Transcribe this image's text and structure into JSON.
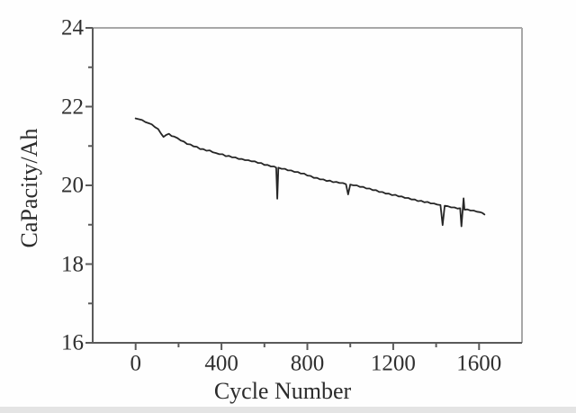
{
  "figure": {
    "kind": "scientific-line-plot",
    "background": "#fefefe"
  },
  "colors": {
    "curve": "#262626",
    "axis_dark": "#5a5a5a",
    "axis_light": "#a8a8a8",
    "text": "#2f2f2f",
    "bottom_strip": "#e4e4e4"
  },
  "chart_data": {
    "type": "line",
    "title": "",
    "xlabel": "Cycle Number",
    "ylabel": "CaPacity/Ah",
    "xlim": [
      -200,
      1800
    ],
    "ylim": [
      16,
      24
    ],
    "x_major_ticks": [
      0,
      400,
      800,
      1200,
      1600
    ],
    "x_minor_ticks": [
      200,
      600,
      1000,
      1400
    ],
    "y_major_ticks": [
      24,
      22,
      20,
      18,
      16
    ],
    "y_minor_ticks": [
      23,
      21,
      19,
      17
    ],
    "grid": false,
    "legend_position": "none",
    "series": [
      {
        "name": "capacity",
        "color": "#262626",
        "points": [
          [
            0,
            21.7
          ],
          [
            15,
            21.68
          ],
          [
            30,
            21.66
          ],
          [
            45,
            21.61
          ],
          [
            60,
            21.58
          ],
          [
            75,
            21.55
          ],
          [
            90,
            21.48
          ],
          [
            105,
            21.43
          ],
          [
            118,
            21.32
          ],
          [
            130,
            21.23
          ],
          [
            142,
            21.28
          ],
          [
            155,
            21.31
          ],
          [
            168,
            21.25
          ],
          [
            180,
            21.24
          ],
          [
            195,
            21.2
          ],
          [
            210,
            21.14
          ],
          [
            225,
            21.11
          ],
          [
            240,
            21.05
          ],
          [
            255,
            21.04
          ],
          [
            270,
            20.99
          ],
          [
            285,
            20.98
          ],
          [
            300,
            20.92
          ],
          [
            315,
            20.92
          ],
          [
            330,
            20.88
          ],
          [
            345,
            20.89
          ],
          [
            360,
            20.84
          ],
          [
            375,
            20.82
          ],
          [
            390,
            20.79
          ],
          [
            405,
            20.79
          ],
          [
            420,
            20.74
          ],
          [
            435,
            20.75
          ],
          [
            450,
            20.71
          ],
          [
            465,
            20.71
          ],
          [
            480,
            20.67
          ],
          [
            495,
            20.67
          ],
          [
            510,
            20.64
          ],
          [
            525,
            20.64
          ],
          [
            540,
            20.61
          ],
          [
            555,
            20.61
          ],
          [
            570,
            20.57
          ],
          [
            585,
            20.57
          ],
          [
            600,
            20.52
          ],
          [
            615,
            20.52
          ],
          [
            630,
            20.48
          ],
          [
            645,
            20.48
          ],
          [
            655,
            20.45
          ],
          [
            660,
            19.66
          ],
          [
            665,
            20.45
          ],
          [
            680,
            20.42
          ],
          [
            695,
            20.42
          ],
          [
            710,
            20.38
          ],
          [
            725,
            20.38
          ],
          [
            740,
            20.34
          ],
          [
            755,
            20.34
          ],
          [
            770,
            20.3
          ],
          [
            785,
            20.3
          ],
          [
            800,
            20.25
          ],
          [
            815,
            20.24
          ],
          [
            830,
            20.19
          ],
          [
            845,
            20.19
          ],
          [
            860,
            20.15
          ],
          [
            875,
            20.15
          ],
          [
            890,
            20.11
          ],
          [
            905,
            20.12
          ],
          [
            920,
            20.08
          ],
          [
            935,
            20.09
          ],
          [
            950,
            20.06
          ],
          [
            965,
            20.06
          ],
          [
            980,
            20.03
          ],
          [
            990,
            19.77
          ],
          [
            1000,
            20.02
          ],
          [
            1015,
            20.0
          ],
          [
            1030,
            20.0
          ],
          [
            1045,
            19.96
          ],
          [
            1060,
            19.96
          ],
          [
            1075,
            19.92
          ],
          [
            1090,
            19.92
          ],
          [
            1105,
            19.88
          ],
          [
            1120,
            19.88
          ],
          [
            1135,
            19.83
          ],
          [
            1150,
            19.83
          ],
          [
            1165,
            19.79
          ],
          [
            1180,
            19.79
          ],
          [
            1195,
            19.75
          ],
          [
            1210,
            19.76
          ],
          [
            1225,
            19.72
          ],
          [
            1240,
            19.72
          ],
          [
            1255,
            19.68
          ],
          [
            1270,
            19.68
          ],
          [
            1285,
            19.64
          ],
          [
            1300,
            19.64
          ],
          [
            1315,
            19.6
          ],
          [
            1330,
            19.61
          ],
          [
            1345,
            19.57
          ],
          [
            1360,
            19.58
          ],
          [
            1375,
            19.54
          ],
          [
            1390,
            19.54
          ],
          [
            1405,
            19.51
          ],
          [
            1420,
            19.5
          ],
          [
            1430,
            18.99
          ],
          [
            1440,
            19.48
          ],
          [
            1455,
            19.47
          ],
          [
            1470,
            19.44
          ],
          [
            1485,
            19.44
          ],
          [
            1500,
            19.41
          ],
          [
            1512,
            19.42
          ],
          [
            1518,
            18.96
          ],
          [
            1524,
            19.4
          ],
          [
            1528,
            19.67
          ],
          [
            1532,
            19.38
          ],
          [
            1545,
            19.39
          ],
          [
            1560,
            19.36
          ],
          [
            1575,
            19.36
          ],
          [
            1590,
            19.33
          ],
          [
            1605,
            19.32
          ],
          [
            1615,
            19.3
          ],
          [
            1625,
            19.26
          ]
        ]
      }
    ]
  }
}
